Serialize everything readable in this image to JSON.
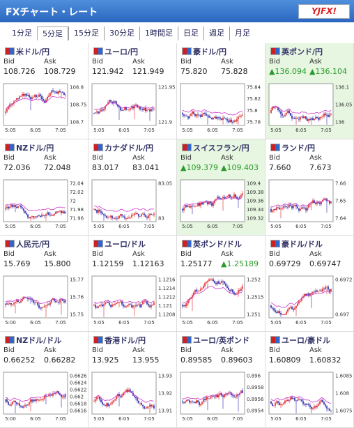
{
  "header": {
    "title": "FXチャート・レート",
    "logo": "YJFX!"
  },
  "tabs": {
    "items": [
      "1分足",
      "5分足",
      "15分足",
      "30分足",
      "1時間足",
      "日足",
      "週足",
      "月足"
    ],
    "selected": 1
  },
  "labels": {
    "bid": "Bid",
    "ask": "Ask"
  },
  "panels": [
    {
      "name": "米ドル/円",
      "bid": "108.726",
      "ask": "108.729",
      "yticks": [
        "108.8",
        "108.75",
        "108.7"
      ],
      "xticks": [
        "5:05",
        "6:05",
        "7:05"
      ]
    },
    {
      "name": "ユーロ/円",
      "bid": "121.942",
      "ask": "121.949",
      "yticks": [
        "121.95",
        "121.9"
      ],
      "xticks": [
        "5:05",
        "6:05",
        "7:05"
      ]
    },
    {
      "name": "豪ドル/円",
      "bid": "75.820",
      "ask": "75.828",
      "yticks": [
        "75.84",
        "75.82",
        "75.8",
        "75.78"
      ],
      "xticks": [
        "5:05",
        "6:05",
        "7:05"
      ]
    },
    {
      "name": "英ポンド/円",
      "bid": "▲136.094",
      "ask": "▲136.104",
      "bid_up": true,
      "ask_up": true,
      "highlight": true,
      "yticks": [
        "136.1",
        "136.05",
        "136"
      ],
      "xticks": [
        "5:05",
        "6:05",
        "7:05"
      ]
    },
    {
      "name": "NZドル/円",
      "bid": "72.036",
      "ask": "72.048",
      "yticks": [
        "72.04",
        "72.02",
        "72",
        "71.98",
        "71.96"
      ],
      "xticks": [
        "5:05",
        "6:05",
        "7:05"
      ]
    },
    {
      "name": "カナダドル/円",
      "bid": "83.017",
      "ask": "83.041",
      "yticks": [
        "83.05",
        "83"
      ],
      "xticks": [
        "5:05",
        "6:05",
        "7:05"
      ]
    },
    {
      "name": "スイスフラン/円",
      "bid": "▲109.379",
      "ask": "▲109.403",
      "bid_up": true,
      "ask_up": true,
      "highlight": true,
      "yticks": [
        "109.4",
        "109.38",
        "109.36",
        "109.34",
        "109.32"
      ],
      "xticks": [
        "5:05",
        "6:05",
        "7:05"
      ]
    },
    {
      "name": "ランド/円",
      "bid": "7.660",
      "ask": "7.673",
      "yticks": [
        "7.66",
        "7.65",
        "7.64"
      ],
      "xticks": [
        "5:05",
        "6:05",
        "7:05"
      ]
    },
    {
      "name": "人民元/円",
      "bid": "15.769",
      "ask": "15.800",
      "yticks": [
        "15.77",
        "15.76",
        "15.75"
      ],
      "xticks": [
        "5:00",
        "6:05",
        "7:05"
      ]
    },
    {
      "name": "ユーロ/ドル",
      "bid": "1.12159",
      "ask": "1.12163",
      "yticks": [
        "1.1216",
        "1.1214",
        "1.1212",
        "1.121",
        "1.1208"
      ],
      "xticks": [
        "5:05",
        "6:05",
        "7:05"
      ]
    },
    {
      "name": "英ポンド/ドル",
      "bid": "1.25177",
      "ask": "▲1.25189",
      "ask_up": true,
      "yticks": [
        "1.252",
        "1.2515",
        "1.251"
      ],
      "xticks": [
        "5:05",
        "6:05",
        "7:05"
      ]
    },
    {
      "name": "豪ドル/ドル",
      "bid": "0.69729",
      "ask": "0.69747",
      "yticks": [
        "0.6972",
        "0.697"
      ],
      "xticks": [
        "5:05",
        "6:05",
        "7:05"
      ]
    },
    {
      "name": "NZドル/ドル",
      "bid": "0.66252",
      "ask": "0.66282",
      "yticks": [
        "0.6626",
        "0.6624",
        "0.6622",
        "0.662",
        "0.6618",
        "0.6616"
      ],
      "xticks": [
        "5:00",
        "6:05",
        "7:05"
      ]
    },
    {
      "name": "香港ドル/円",
      "bid": "13.925",
      "ask": "13.955",
      "yticks": [
        "13.93",
        "13.92",
        "13.91"
      ],
      "xticks": [
        "5:05",
        "6:05",
        "7:05"
      ]
    },
    {
      "name": "ユーロ/英ポンド",
      "bid": "0.89585",
      "ask": "0.89603",
      "yticks": [
        "0.896",
        "0.8958",
        "0.8956",
        "0.8954"
      ],
      "xticks": [
        "5:05",
        "6:05",
        "7:05"
      ]
    },
    {
      "name": "ユーロ/豪ドル",
      "bid": "1.60809",
      "ask": "1.60832",
      "yticks": [
        "1.6085",
        "1.608",
        "1.6075"
      ],
      "xticks": [
        "5:05",
        "6:05",
        "7:05"
      ]
    }
  ]
}
